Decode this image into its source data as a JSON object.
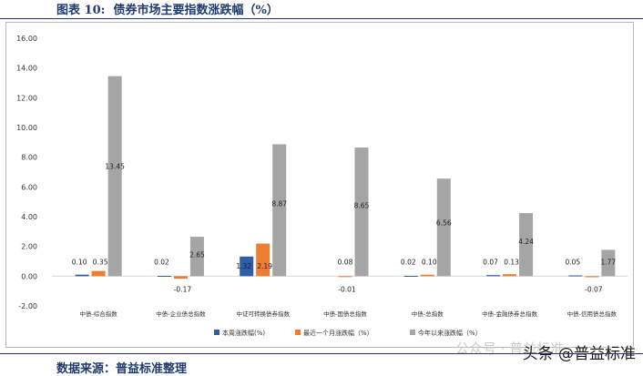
{
  "header": {
    "title": "图表 10:  债券市场主要指数涨跌幅（%）"
  },
  "source": {
    "text": "数据来源：普益标准整理"
  },
  "watermark": {
    "faint_text": "公众号 · 普益标准",
    "text": "头条 @普益标准"
  },
  "colors": {
    "weekly": "#2e5ea8",
    "monthly": "#ed7d31",
    "ytd": "#a5a5a5",
    "axis": "#d9d9d9"
  },
  "chart_data": {
    "type": "bar",
    "categories": [
      "中债-综合指数",
      "中债-企业债总指数",
      "中证可转换债券指数",
      "中债-国债总指数",
      "中债-总指数",
      "中债-金融债券总指数",
      "中债-信用债总指数"
    ],
    "series": [
      {
        "name": "本周涨跌幅(%)",
        "values": [
          0.1,
          0.02,
          1.32,
          null,
          0.02,
          0.07,
          0.05
        ]
      },
      {
        "name": "最近一个月涨跌幅（%）",
        "values": [
          0.35,
          -0.17,
          2.19,
          -0.01,
          0.1,
          0.13,
          -0.07
        ]
      },
      {
        "name": "今年以来涨跌幅（%）",
        "values": [
          13.45,
          2.65,
          8.87,
          8.65,
          6.56,
          4.24,
          1.77
        ]
      }
    ],
    "labels": [
      [
        "0.10",
        "0.02",
        "1.32",
        "",
        "0.02",
        "0.07",
        "0.05"
      ],
      [
        "0.35",
        "-0.17",
        "2.19",
        "-0.01",
        "0.10",
        "0.13",
        "-0.07"
      ],
      [
        "13.45",
        "2.65",
        "8.87",
        "8.65",
        "6.56",
        "4.24",
        "1.77"
      ]
    ],
    "extra_labels": [
      "0.08"
    ],
    "yticks": [
      "16.00",
      "14.00",
      "12.00",
      "10.00",
      "8.00",
      "6.00",
      "4.00",
      "2.00",
      "0.00",
      "-2.00"
    ],
    "ylim": [
      -2,
      16
    ],
    "legend_position": "bottom"
  }
}
